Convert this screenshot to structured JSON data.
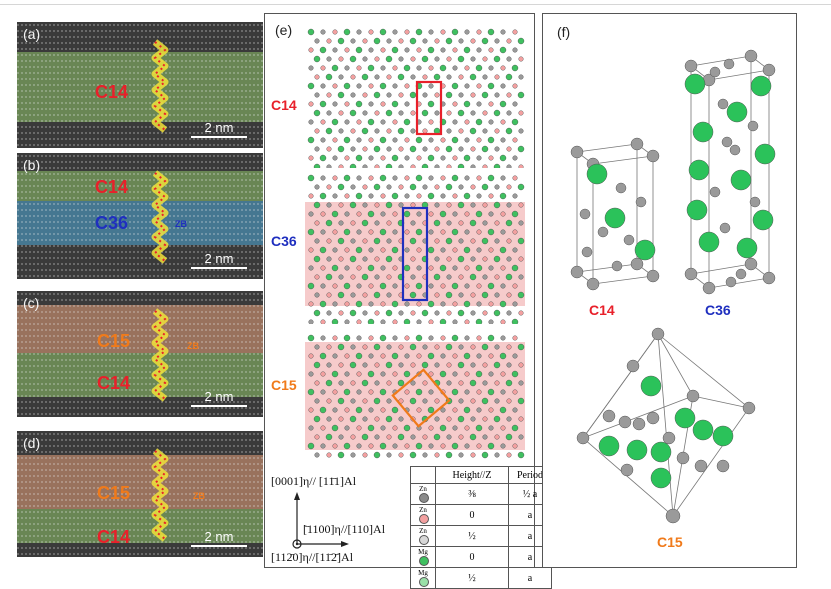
{
  "panels": {
    "a": {
      "label": "(a)",
      "phases": [
        {
          "text": "C14",
          "color": "#e8202a"
        }
      ],
      "scale": "2 nm"
    },
    "b": {
      "label": "(b)",
      "phases": [
        {
          "text": "C14",
          "color": "#e8202a"
        },
        {
          "text": "C36",
          "color": "#1f2fbf"
        }
      ],
      "sub": "ZB",
      "sub_color": "#1f2fbf",
      "scale": "2 nm"
    },
    "c": {
      "label": "(c)",
      "phases": [
        {
          "text": "C15",
          "color": "#f07a1a"
        },
        {
          "text": "C14",
          "color": "#e8202a"
        }
      ],
      "sub": "ZB",
      "sub_color": "#f07a1a",
      "scale": "2 nm"
    },
    "d": {
      "label": "(d)",
      "phases": [
        {
          "text": "C15",
          "color": "#f07a1a"
        },
        {
          "text": "C14",
          "color": "#e8202a"
        }
      ],
      "sub": "ZB",
      "sub_color": "#f07a1a",
      "scale": "2 nm"
    }
  },
  "panel_e": {
    "label": "(e)",
    "structures": [
      {
        "text": "C14",
        "color": "#e8202a"
      },
      {
        "text": "C36",
        "color": "#1f2fbf"
      },
      {
        "text": "C15",
        "color": "#f07a1a"
      }
    ],
    "axes": {
      "vertical": "[0001]η// [11̄1]Al",
      "horizontal": "[̄1100]η//[110]Al",
      "out_of_plane": "[112̄0]η//[11̄2̄]Al"
    },
    "legend": {
      "headers": [
        "",
        "Height//Z",
        "Period"
      ],
      "rows": [
        {
          "atom": "Zn",
          "height": "⅜",
          "period": "½ a",
          "color": "#8a8a8a"
        },
        {
          "atom": "Zn",
          "height": "0",
          "period": "a",
          "color": "#f3a0a0"
        },
        {
          "atom": "Zn",
          "height": "½",
          "period": "a",
          "color": "#d8d8d8"
        },
        {
          "atom": "Mg",
          "height": "0",
          "period": "a",
          "color": "#3fc060"
        },
        {
          "atom": "Mg",
          "height": "½",
          "period": "a",
          "color": "#9ae0a8"
        }
      ]
    }
  },
  "panel_f": {
    "label": "(f)",
    "structures": [
      {
        "text": "C14",
        "color": "#e8202a"
      },
      {
        "text": "C36",
        "color": "#1f2fbf"
      },
      {
        "text": "C15",
        "color": "#f07a1a"
      }
    ]
  },
  "colors": {
    "zn_atom": "#9a9a9a",
    "mg_atom": "#2bc25a",
    "c14_band": "#8fc46a",
    "c36_band": "#4fa9d8",
    "c15_band": "#e7a07a"
  }
}
